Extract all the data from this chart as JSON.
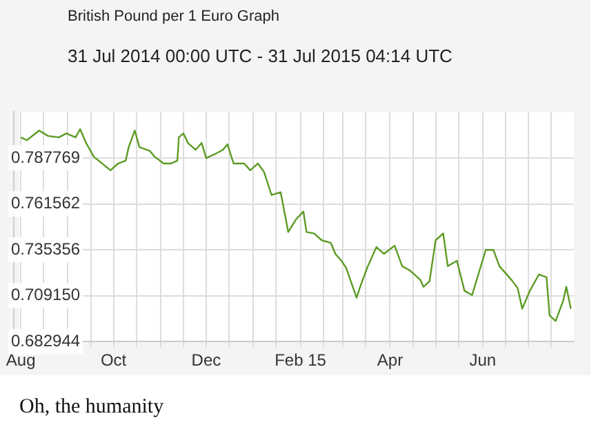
{
  "chart_data": {
    "type": "line",
    "title": "British Pound per 1 Euro Graph",
    "subtitle": "31 Jul 2014 00:00 UTC - 31 Jul 2015 04:14 UTC",
    "annotations": [
      "Oh, the humanity"
    ],
    "x": [
      "2014-08-01",
      "2014-08-05",
      "2014-08-13",
      "2014-08-19",
      "2014-08-26",
      "2014-08-31",
      "2014-09-06",
      "2014-09-09",
      "2014-09-13",
      "2014-09-18",
      "2014-09-29",
      "2014-10-04",
      "2014-10-09",
      "2014-10-11",
      "2014-10-15",
      "2014-10-18",
      "2014-10-25",
      "2014-10-28",
      "2014-11-03",
      "2014-11-08",
      "2014-11-12",
      "2014-11-13",
      "2014-11-16",
      "2014-11-19",
      "2014-11-24",
      "2014-11-28",
      "2014-12-01",
      "2014-12-07",
      "2014-12-12",
      "2014-12-15",
      "2014-12-19",
      "2014-12-26",
      "2014-12-30",
      "2015-01-04",
      "2015-01-08",
      "2015-01-13",
      "2015-01-19",
      "2015-01-24",
      "2015-01-29",
      "2015-02-03",
      "2015-02-05",
      "2015-02-10",
      "2015-02-15",
      "2015-02-21",
      "2015-02-24",
      "2015-02-28",
      "2015-03-03",
      "2015-03-10",
      "2015-03-12",
      "2015-03-17",
      "2015-03-23",
      "2015-03-28",
      "2015-04-04",
      "2015-04-09",
      "2015-04-14",
      "2015-04-21",
      "2015-04-23",
      "2015-04-27",
      "2015-05-01",
      "2015-05-06",
      "2015-05-09",
      "2015-05-15",
      "2015-05-20",
      "2015-05-25",
      "2015-05-28",
      "2015-06-03",
      "2015-06-08",
      "2015-06-12",
      "2015-06-20",
      "2015-06-24",
      "2015-06-27",
      "2015-07-02",
      "2015-07-08",
      "2015-07-13",
      "2015-07-15",
      "2015-07-19",
      "2015-07-24",
      "2015-07-26",
      "2015-07-29"
    ],
    "series": [
      {
        "color": "#5b9b23",
        "values": [
          0.7995,
          0.7979,
          0.8034,
          0.8003,
          0.7995,
          0.8018,
          0.7995,
          0.8042,
          0.7963,
          0.7885,
          0.7807,
          0.7846,
          0.7862,
          0.794,
          0.8034,
          0.794,
          0.7917,
          0.7885,
          0.7846,
          0.7846,
          0.7862,
          0.7995,
          0.8018,
          0.7963,
          0.7924,
          0.7963,
          0.7877,
          0.7901,
          0.7924,
          0.7956,
          0.7846,
          0.7846,
          0.7807,
          0.7846,
          0.7799,
          0.7666,
          0.7682,
          0.7455,
          0.7526,
          0.7572,
          0.7455,
          0.7447,
          0.7408,
          0.7393,
          0.733,
          0.7291,
          0.7252,
          0.708,
          0.7134,
          0.7252,
          0.7369,
          0.733,
          0.7377,
          0.726,
          0.7236,
          0.7181,
          0.7142,
          0.7174,
          0.7408,
          0.7447,
          0.726,
          0.7291,
          0.7119,
          0.7095,
          0.7181,
          0.7353,
          0.7353,
          0.726,
          0.7181,
          0.7134,
          0.7017,
          0.7119,
          0.7213,
          0.7197,
          0.6978,
          0.6947,
          0.7064,
          0.7142,
          0.7017
        ]
      }
    ],
    "xlim": [
      "2014-07-31",
      "2015-07-31"
    ],
    "xticks": [
      {
        "value": "2014-08-01",
        "label": "Aug"
      },
      {
        "value": "2014-08-16",
        "label": null
      },
      {
        "value": "2014-09-01",
        "label": null
      },
      {
        "value": "2014-09-16",
        "label": null
      },
      {
        "value": "2014-10-01",
        "label": "Oct"
      },
      {
        "value": "2014-10-16",
        "label": null
      },
      {
        "value": "2014-11-01",
        "label": null
      },
      {
        "value": "2014-11-16",
        "label": null
      },
      {
        "value": "2014-12-01",
        "label": "Dec"
      },
      {
        "value": "2014-12-16",
        "label": null
      },
      {
        "value": "2015-01-01",
        "label": null
      },
      {
        "value": "2015-01-16",
        "label": null
      },
      {
        "value": "2015-02-01",
        "label": "Feb 15"
      },
      {
        "value": "2015-02-16",
        "label": null
      },
      {
        "value": "2015-03-01",
        "label": null
      },
      {
        "value": "2015-03-16",
        "label": null
      },
      {
        "value": "2015-04-01",
        "label": "Apr"
      },
      {
        "value": "2015-04-16",
        "label": null
      },
      {
        "value": "2015-05-01",
        "label": null
      },
      {
        "value": "2015-05-16",
        "label": null
      },
      {
        "value": "2015-06-01",
        "label": "Jun"
      },
      {
        "value": "2015-06-16",
        "label": null
      },
      {
        "value": "2015-07-01",
        "label": null
      },
      {
        "value": "2015-07-16",
        "label": null
      }
    ],
    "ylim": [
      0.682944,
      0.813975
    ],
    "yticks": [
      0.682944,
      {
        "value": 0.70915,
        "label": "0.709150"
      },
      0.735356,
      0.761562,
      0.787769
    ],
    "grid": true,
    "marker": "none",
    "line_style": "solid"
  }
}
